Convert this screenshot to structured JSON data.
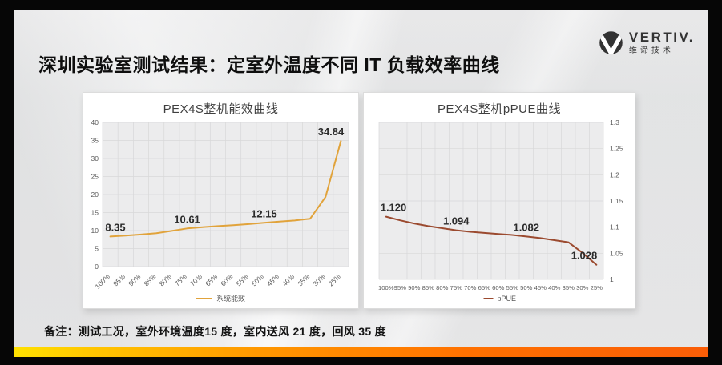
{
  "slide": {
    "title": "深圳实验室测试结果：定室外温度不同 IT 负载效率曲线",
    "note": "备注：测试工况，室外环境温度15 度，室内送风 21 度，回风 35 度",
    "accent_bar_colors": [
      "#FFE100",
      "#FFC400",
      "#FF9800",
      "#FF7100",
      "#FA5D07"
    ]
  },
  "logo": {
    "brand": "VERTIV.",
    "subtitle": "维谛技术",
    "color": "#333333"
  },
  "chart_data": [
    {
      "type": "line",
      "title": "PEX4S整机能效曲线",
      "categories": [
        "100%",
        "95%",
        "90%",
        "85%",
        "80%",
        "75%",
        "70%",
        "65%",
        "60%",
        "55%",
        "50%",
        "45%",
        "40%",
        "35%",
        "30%",
        "25%"
      ],
      "series": [
        {
          "name": "系统能效",
          "color": "#E1A33B",
          "values": [
            8.35,
            8.6,
            8.9,
            9.3,
            9.9,
            10.61,
            10.95,
            11.25,
            11.5,
            11.8,
            12.15,
            12.5,
            12.8,
            13.3,
            19.3,
            34.84
          ]
        }
      ],
      "xlabel": "",
      "ylabel": "",
      "ylim": [
        0,
        40
      ],
      "yticks": [
        0,
        5,
        10,
        15,
        20,
        25,
        30,
        35,
        40
      ],
      "ytick_labels": [
        "0",
        "5",
        "10",
        "15",
        "20",
        "25",
        "30",
        "35",
        "40"
      ],
      "y_axis_side": "left",
      "x_label_rotation": -45,
      "grid": true,
      "legend_position": "bottom",
      "data_labels": [
        {
          "index": 0,
          "text": "8.35"
        },
        {
          "index": 5,
          "text": "10.61"
        },
        {
          "index": 10,
          "text": "12.15"
        },
        {
          "index": 15,
          "text": "34.84"
        }
      ]
    },
    {
      "type": "line",
      "title": "PEX4S整机pPUE曲线",
      "categories": [
        "100%",
        "95%",
        "90%",
        "85%",
        "80%",
        "75%",
        "70%",
        "65%",
        "60%",
        "55%",
        "50%",
        "45%",
        "40%",
        "35%",
        "30%",
        "25%"
      ],
      "series": [
        {
          "name": "pPUE",
          "color": "#9B4A2F",
          "values": [
            1.12,
            1.113,
            1.107,
            1.102,
            1.098,
            1.094,
            1.091,
            1.089,
            1.087,
            1.085,
            1.082,
            1.079,
            1.075,
            1.071,
            1.051,
            1.028
          ]
        }
      ],
      "xlabel": "",
      "ylabel": "",
      "ylim": [
        1,
        1.3
      ],
      "yticks": [
        1,
        1.05,
        1.1,
        1.15,
        1.2,
        1.25,
        1.3
      ],
      "ytick_labels": [
        "1",
        "1.05",
        "1.1",
        "1.15",
        "1.2",
        "1.25",
        "1.3"
      ],
      "y_axis_side": "right",
      "x_label_rotation": 0,
      "grid": true,
      "legend_position": "bottom",
      "data_labels": [
        {
          "index": 0,
          "text": "1.120"
        },
        {
          "index": 5,
          "text": "1.094"
        },
        {
          "index": 10,
          "text": "1.082"
        },
        {
          "index": 15,
          "text": "1.028"
        }
      ]
    }
  ]
}
